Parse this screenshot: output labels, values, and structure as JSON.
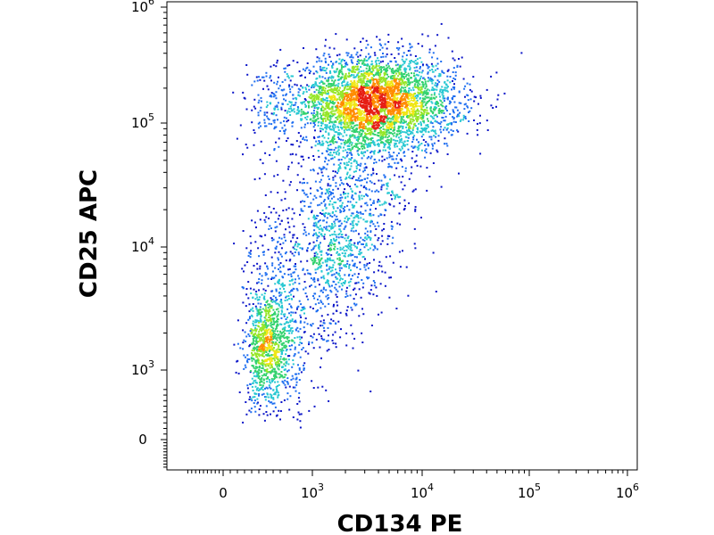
{
  "chart_data": {
    "type": "scatter",
    "title": "",
    "xlabel": "CD134 PE",
    "ylabel": "CD25 APC",
    "x_scale": "logicle",
    "y_scale": "logicle",
    "xlim": [
      -300,
      1100000
    ],
    "ylim": [
      -300,
      1000000
    ],
    "x_ticks": [
      {
        "value": 0,
        "base": "0",
        "exp": ""
      },
      {
        "value": 1000,
        "base": "10",
        "exp": "3"
      },
      {
        "value": 10000,
        "base": "10",
        "exp": "4"
      },
      {
        "value": 100000,
        "base": "10",
        "exp": "5"
      },
      {
        "value": 1000000,
        "base": "10",
        "exp": "6"
      }
    ],
    "y_ticks": [
      {
        "value": 0,
        "base": "0",
        "exp": ""
      },
      {
        "value": 1000,
        "base": "10",
        "exp": "3"
      },
      {
        "value": 10000,
        "base": "10",
        "exp": "4"
      },
      {
        "value": 100000,
        "base": "10",
        "exp": "5"
      },
      {
        "value": 1000000,
        "base": "10",
        "exp": "6"
      }
    ],
    "grid": false,
    "legend": "none",
    "density_colormap": [
      "#0a14c8",
      "#1e6ef0",
      "#28c8d2",
      "#32d26e",
      "#96e628",
      "#f0e614",
      "#ff8c00",
      "#e61e14"
    ],
    "populations": [
      {
        "label": "CD25-high",
        "center_x": 3500,
        "center_y": 150000,
        "spread_x_decades": 0.38,
        "spread_y_decades": 0.2,
        "weight": 0.6
      },
      {
        "label": "CD25-low",
        "center_x": 500,
        "center_y": 1500,
        "spread_x_decades": 0.12,
        "spread_y_decades": 0.22,
        "weight": 0.14
      },
      {
        "label": "transition",
        "center_x": 1500,
        "center_y": 12000,
        "spread_x_decades": 0.35,
        "spread_y_decades": 0.45,
        "weight": 0.26
      }
    ]
  }
}
